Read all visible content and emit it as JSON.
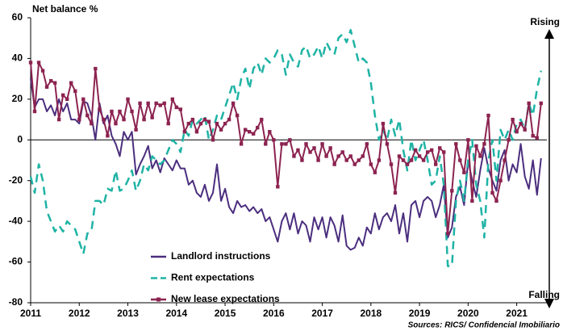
{
  "chart_data": {
    "type": "line",
    "y_label": "Net balance %",
    "annotations": {
      "top": "Rising",
      "bottom": "Falling",
      "source": "Sources: RICS/ Confidencial Imobiliario"
    },
    "xlim": [
      2011,
      2021.62
    ],
    "xticks": [
      2011,
      2012,
      2013,
      2014,
      2015,
      2016,
      2017,
      2018,
      2019,
      2020,
      2021
    ],
    "ylim": [
      -80,
      60
    ],
    "yticks": [
      -80,
      -60,
      -40,
      -20,
      0,
      20,
      40,
      60
    ],
    "x": [
      2011,
      2011.083,
      2011.167,
      2011.25,
      2011.333,
      2011.417,
      2011.5,
      2011.583,
      2011.667,
      2011.75,
      2011.833,
      2011.917,
      2012,
      2012.083,
      2012.167,
      2012.25,
      2012.333,
      2012.417,
      2012.5,
      2012.583,
      2012.667,
      2012.75,
      2012.833,
      2012.917,
      2013,
      2013.083,
      2013.167,
      2013.25,
      2013.333,
      2013.417,
      2013.5,
      2013.583,
      2013.667,
      2013.75,
      2013.833,
      2013.917,
      2014,
      2014.083,
      2014.167,
      2014.25,
      2014.333,
      2014.417,
      2014.5,
      2014.583,
      2014.667,
      2014.75,
      2014.833,
      2014.917,
      2015,
      2015.083,
      2015.167,
      2015.25,
      2015.333,
      2015.417,
      2015.5,
      2015.583,
      2015.667,
      2015.75,
      2015.833,
      2015.917,
      2016,
      2016.083,
      2016.167,
      2016.25,
      2016.333,
      2016.417,
      2016.5,
      2016.583,
      2016.667,
      2016.75,
      2016.833,
      2016.917,
      2017,
      2017.083,
      2017.167,
      2017.25,
      2017.333,
      2017.417,
      2017.5,
      2017.583,
      2017.667,
      2017.75,
      2017.833,
      2017.917,
      2018,
      2018.083,
      2018.167,
      2018.25,
      2018.333,
      2018.417,
      2018.5,
      2018.583,
      2018.667,
      2018.75,
      2018.833,
      2018.917,
      2019,
      2019.083,
      2019.167,
      2019.25,
      2019.333,
      2019.417,
      2019.5,
      2019.583,
      2019.667,
      2019.75,
      2019.833,
      2019.917,
      2020,
      2020.083,
      2020.167,
      2020.25,
      2020.333,
      2020.417,
      2020.5,
      2020.583,
      2020.667,
      2020.75,
      2020.833,
      2020.917,
      2021,
      2021.083,
      2021.167,
      2021.25,
      2021.333,
      2021.417,
      2021.5
    ],
    "series": [
      {
        "name": "Landlord instructions",
        "color": "#4b2e7e",
        "style": "solid",
        "values": [
          30,
          16,
          20,
          20,
          14,
          17,
          12,
          20,
          14,
          18,
          10,
          10,
          8,
          19,
          18,
          12,
          0,
          18,
          8,
          12,
          2,
          -2,
          -8,
          4,
          0,
          4,
          -17,
          -12,
          -8,
          -3,
          -14,
          -10,
          -16,
          -9,
          -12,
          -15,
          -10,
          -14,
          -14,
          -22,
          -20,
          -26,
          -28,
          -22,
          -30,
          -26,
          -12,
          -30,
          -24,
          -33,
          -36,
          -30,
          -33,
          -32,
          -35,
          -33,
          -36,
          -34,
          -40,
          -38,
          -44,
          -50,
          -40,
          -36,
          -44,
          -36,
          -46,
          -40,
          -42,
          -50,
          -38,
          -44,
          -38,
          -48,
          -38,
          -42,
          -50,
          -37,
          -52,
          -54,
          -53,
          -48,
          -52,
          -43,
          -46,
          -36,
          -44,
          -38,
          -36,
          -40,
          -32,
          -46,
          -36,
          -50,
          -32,
          -30,
          -38,
          -30,
          -28,
          -30,
          -38,
          -32,
          -22,
          -48,
          -43,
          -28,
          -23,
          -32,
          -10,
          -20,
          -28,
          -15,
          -4,
          -14,
          -20,
          -25,
          -10,
          -5,
          -20,
          -12,
          -16,
          -2,
          -18,
          -24,
          -10,
          -27,
          -9
        ]
      },
      {
        "name": "Rent expectations",
        "color": "#1fb3a5",
        "style": "dashed",
        "values": [
          -18,
          -26,
          -12,
          -20,
          -35,
          -40,
          -45,
          -42,
          -45,
          -40,
          -42,
          -44,
          -50,
          -56,
          -46,
          -45,
          -30,
          -30,
          -32,
          -24,
          -25,
          -15,
          -25,
          -24,
          -20,
          -15,
          -25,
          -20,
          -12,
          -15,
          -8,
          -10,
          -12,
          -10,
          -5,
          0,
          -2,
          -6,
          5,
          2,
          10,
          8,
          10,
          12,
          0,
          5,
          12,
          10,
          16,
          22,
          28,
          20,
          30,
          35,
          25,
          35,
          38,
          32,
          40,
          38,
          40,
          44,
          42,
          32,
          42,
          38,
          36,
          44,
          46,
          40,
          42,
          46,
          40,
          48,
          44,
          42,
          50,
          52,
          48,
          54,
          46,
          38,
          40,
          38,
          28,
          12,
          0,
          5,
          0,
          10,
          2,
          10,
          -5,
          -15,
          0,
          -10,
          -5,
          0,
          -10,
          -22,
          -20,
          -8,
          -22,
          -62,
          -62,
          -30,
          -20,
          -30,
          -10,
          0,
          -22,
          -30,
          -48,
          -10,
          0,
          -20,
          5,
          0,
          5,
          0,
          8,
          10,
          5,
          18,
          12,
          25,
          34
        ]
      },
      {
        "name": "New lease expectations",
        "color": "#8c2350",
        "style": "solid",
        "marker": "square",
        "values": [
          38,
          14,
          38,
          34,
          26,
          29,
          28,
          10,
          22,
          20,
          28,
          24,
          10,
          20,
          12,
          8,
          35,
          15,
          10,
          2,
          14,
          8,
          14,
          10,
          20,
          14,
          5,
          18,
          10,
          18,
          11,
          18,
          17,
          18,
          8,
          20,
          16,
          15,
          4,
          8,
          10,
          4,
          8,
          10,
          9,
          0,
          8,
          5,
          8,
          10,
          18,
          12,
          -2,
          5,
          4,
          3,
          6,
          10,
          -2,
          4,
          0,
          -23,
          -2,
          -2,
          0,
          -8,
          -5,
          -10,
          -2,
          -6,
          -4,
          -10,
          -2,
          -8,
          -4,
          -12,
          -8,
          -6,
          -10,
          -8,
          -12,
          -10,
          -8,
          -2,
          -12,
          -16,
          -10,
          8,
          -2,
          -12,
          -26,
          -8,
          -10,
          -12,
          -10,
          -5,
          -8,
          -10,
          -6,
          -5,
          -12,
          -4,
          -6,
          -46,
          -25,
          -2,
          -10,
          -16,
          0,
          -30,
          -3,
          -8,
          -2,
          12,
          -26,
          -30,
          -20,
          -10,
          0,
          10,
          4,
          8,
          5,
          18,
          2,
          1,
          18
        ]
      }
    ]
  }
}
